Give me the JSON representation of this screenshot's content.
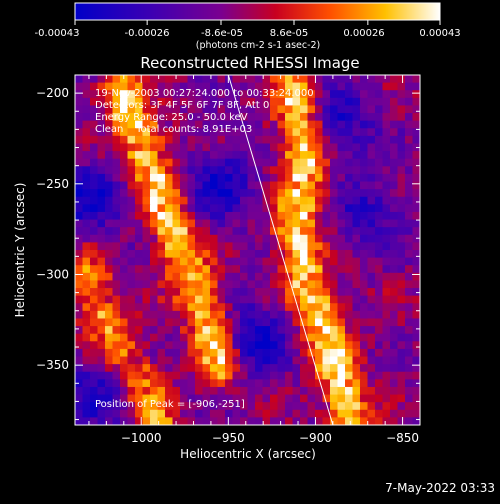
{
  "colors": {
    "background": "#000000",
    "foreground": "#ffffff",
    "limb_line": "#ffffff"
  },
  "colorbar": {
    "tick_labels": [
      "-0.00043",
      "-0.00026",
      "-8.6e-05",
      "8.6e-05",
      "0.00026",
      "0.00043"
    ],
    "tick_values": [
      -0.00043,
      -0.00026,
      -8.6e-05,
      8.6e-05,
      0.00026,
      0.00043
    ],
    "range": [
      -0.00043,
      0.00043
    ],
    "unit_label": "(photons cm-2 s-1 asec-2)",
    "colormap": "blue-purple-red-yellow-white"
  },
  "chart_data": {
    "type": "heatmap",
    "title": "Reconstructed RHESSI Image",
    "xlabel": "Heliocentric X (arcsec)",
    "ylabel": "Heliocentric Y (arcsec)",
    "xlim": [
      -1038,
      -840
    ],
    "ylim": [
      -383,
      -190
    ],
    "x_ticks": [
      -1000,
      -950,
      -900,
      -850
    ],
    "x_tick_labels": [
      "−1000",
      "−950",
      "−900",
      "−850"
    ],
    "y_ticks": [
      -200,
      -250,
      -300,
      -350
    ],
    "y_tick_labels": [
      "−200",
      "−250",
      "−300",
      "−350"
    ],
    "grid": false,
    "annotations": {
      "time_range": "19-Nov-2003 00:27:24.000 to 00:33:24.000",
      "detectors": "Detectors: 3F 4F 5F 6F 7F 8F, Att 0",
      "energy": "Energy Range: 25.0 - 50.0 keV",
      "method": "Clean    Total counts: 8.91E+03",
      "peak": "Position of Peak = [-906,-251]"
    },
    "peak_position": [
      -906,
      -251
    ],
    "solar_limb": [
      [
        -950,
        -190
      ],
      [
        -890,
        -383
      ]
    ],
    "bright_ridges": [
      {
        "points": [
          [
            -1012,
            -200
          ],
          [
            -1002,
            -222
          ],
          [
            -992,
            -247
          ],
          [
            -985,
            -268
          ],
          [
            -977,
            -288
          ],
          [
            -969,
            -307
          ],
          [
            -960,
            -328
          ],
          [
            -955,
            -348
          ]
        ],
        "amplitude": 0.00042
      },
      {
        "points": [
          [
            -912,
            -200
          ],
          [
            -908,
            -222
          ],
          [
            -906,
            -251
          ],
          [
            -912,
            -278
          ],
          [
            -905,
            -302
          ],
          [
            -898,
            -325
          ],
          [
            -888,
            -350
          ],
          [
            -880,
            -378
          ]
        ],
        "amplitude": 0.00043
      },
      {
        "points": [
          [
            -1032,
            -300
          ],
          [
            -1022,
            -322
          ],
          [
            -1012,
            -342
          ],
          [
            -1000,
            -362
          ],
          [
            -990,
            -380
          ]
        ],
        "amplitude": 0.0003
      }
    ],
    "dim_regions": [
      {
        "center": [
          -955,
          -250
        ],
        "amplitude": -0.0003
      },
      {
        "center": [
          -1030,
          -258
        ],
        "amplitude": -0.00028
      },
      {
        "center": [
          -935,
          -335
        ],
        "amplitude": -0.00032
      },
      {
        "center": [
          -885,
          -215
        ],
        "amplitude": -0.00025
      },
      {
        "center": [
          -1025,
          -365
        ],
        "amplitude": -0.00025
      },
      {
        "center": [
          -870,
          -265
        ],
        "amplitude": -0.00022
      }
    ]
  },
  "footer": {
    "timestamp": "7-May-2022 03:33"
  }
}
